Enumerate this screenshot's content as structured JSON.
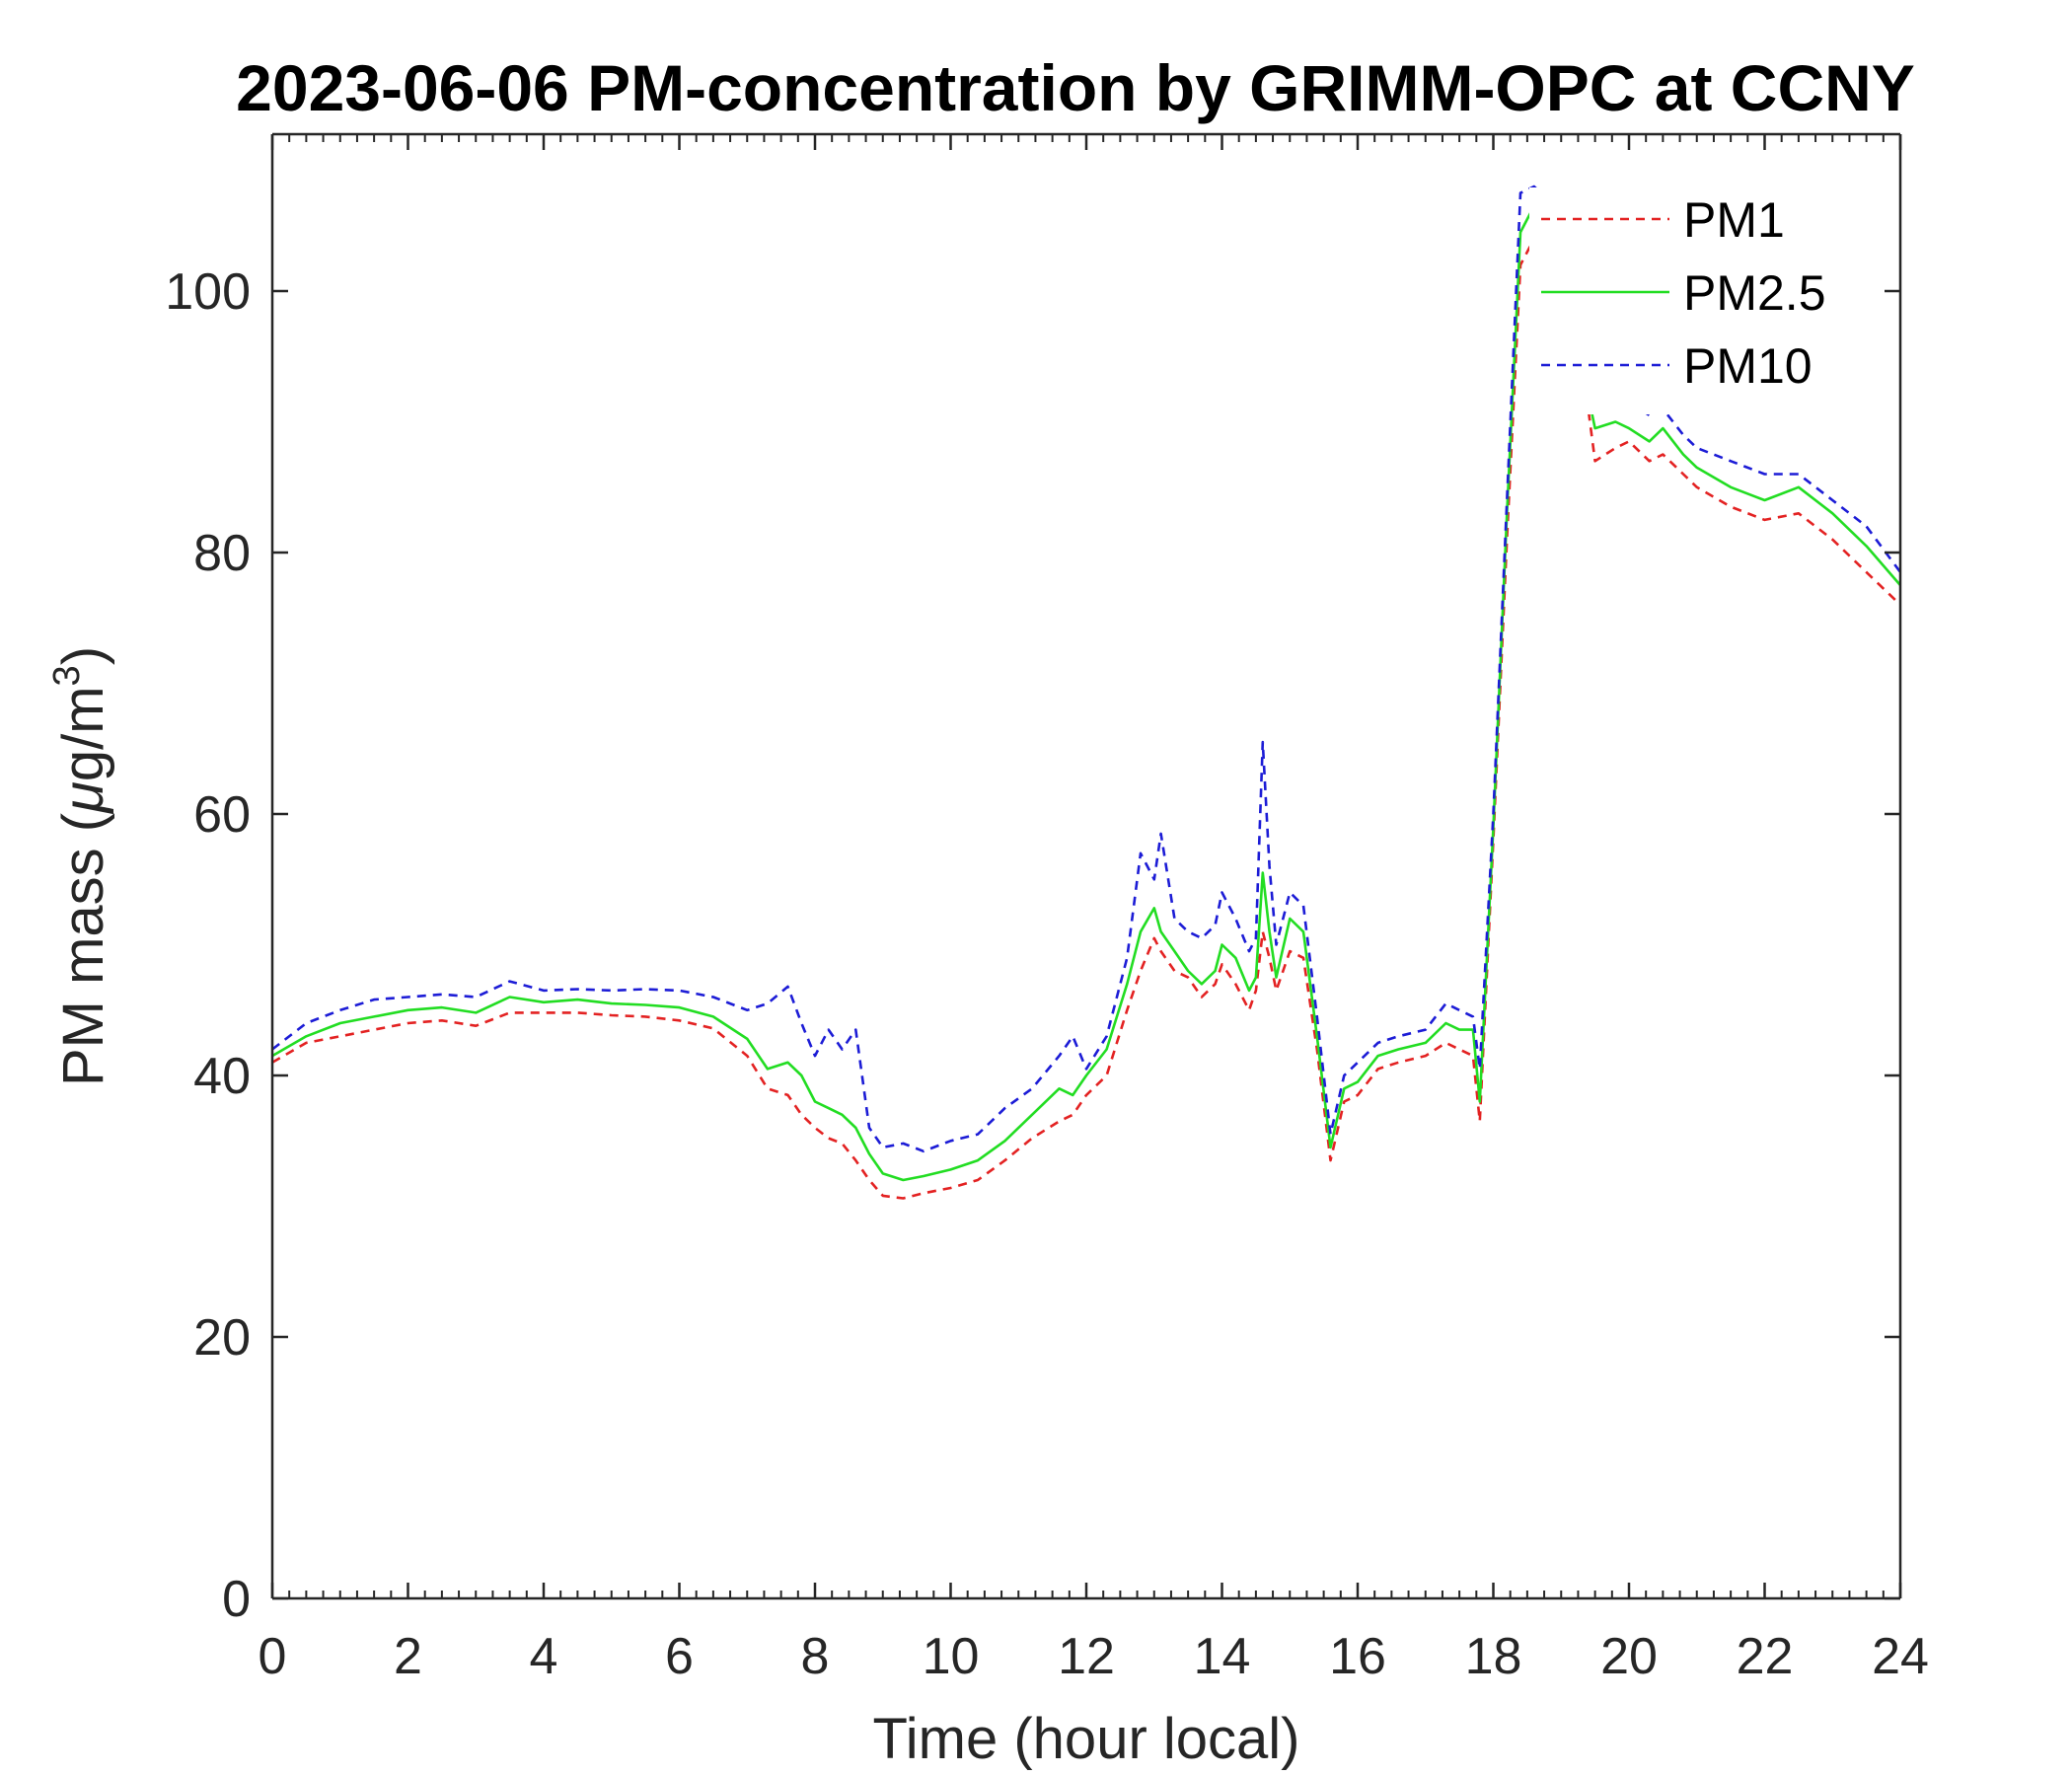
{
  "chart_data": {
    "type": "line",
    "title": "2023-06-06 PM-concentration by GRIMM-OPC at CCNY",
    "xlabel": "Time (hour local)",
    "ylabel_prefix": "PM mass (",
    "ylabel_mu": "μ",
    "ylabel_unit": "g/m",
    "ylabel_sup": "3",
    "ylabel_suffix": ")",
    "xlim": [
      0,
      24
    ],
    "ylim": [
      0,
      112
    ],
    "xticks": [
      0,
      2,
      4,
      6,
      8,
      10,
      12,
      14,
      16,
      18,
      20,
      22,
      24
    ],
    "yticks": [
      0,
      20,
      40,
      60,
      80,
      100
    ],
    "grid": false,
    "legend_position": "top-right",
    "x": [
      0,
      0.5,
      1,
      1.5,
      2,
      2.5,
      3,
      3.5,
      4,
      4.5,
      5,
      5.5,
      6,
      6.5,
      7,
      7.3,
      7.6,
      7.8,
      8,
      8.2,
      8.4,
      8.6,
      8.8,
      9,
      9.3,
      9.6,
      10,
      10.4,
      10.8,
      11.2,
      11.6,
      11.8,
      12,
      12.3,
      12.6,
      12.8,
      13,
      13.1,
      13.3,
      13.5,
      13.7,
      13.9,
      14,
      14.2,
      14.4,
      14.5,
      14.6,
      14.7,
      14.8,
      15,
      15.2,
      15.4,
      15.6,
      15.8,
      16,
      16.3,
      16.6,
      17,
      17.3,
      17.5,
      17.7,
      17.8,
      18,
      18.2,
      18.4,
      18.6,
      18.8,
      19,
      19.2,
      19.4,
      19.5,
      19.8,
      20,
      20.3,
      20.5,
      20.8,
      21,
      21.5,
      22,
      22.5,
      23,
      23.5,
      24
    ],
    "series": [
      {
        "name": "PM1",
        "color": "#e32222",
        "dash": "dashed",
        "values": [
          41,
          42.5,
          43,
          43.5,
          44,
          44.2,
          43.8,
          44.8,
          44.8,
          44.8,
          44.6,
          44.5,
          44.2,
          43.6,
          41.5,
          39,
          38.5,
          37,
          36,
          35.2,
          34.8,
          33.5,
          32,
          30.8,
          30.6,
          31,
          31.4,
          32,
          33.5,
          35.2,
          36.5,
          37,
          38.5,
          40,
          45,
          48,
          50.5,
          49.5,
          48,
          47.5,
          46,
          47,
          48.5,
          47,
          45,
          46.5,
          51,
          49,
          46.5,
          49.5,
          49,
          42,
          33.5,
          38,
          38.5,
          40.5,
          41,
          41.5,
          42.5,
          42,
          41.5,
          36.5,
          58,
          81,
          102,
          104,
          103,
          102,
          99,
          91,
          87,
          88,
          88.5,
          87,
          87.5,
          86,
          85,
          83.5,
          82.5,
          83,
          81,
          78.5,
          76
        ]
      },
      {
        "name": "PM2.5",
        "color": "#22dd22",
        "dash": "solid",
        "values": [
          41.5,
          43,
          44,
          44.5,
          45,
          45.2,
          44.8,
          46,
          45.6,
          45.8,
          45.5,
          45.4,
          45.2,
          44.5,
          42.8,
          40.5,
          41,
          40,
          38,
          37.5,
          37,
          36,
          34,
          32.5,
          32,
          32.3,
          32.8,
          33.5,
          35,
          37,
          39,
          38.5,
          40,
          42,
          47,
          51,
          52.8,
          51,
          49.5,
          48,
          47,
          48,
          50,
          49,
          46.5,
          47.5,
          55.5,
          51,
          47.5,
          52,
          51,
          43,
          34.5,
          39,
          39.5,
          41.5,
          42,
          42.5,
          44,
          43.5,
          43.5,
          38,
          59,
          83,
          104.5,
          106.5,
          105.5,
          104.5,
          100,
          92,
          89.5,
          90,
          89.5,
          88.5,
          89.5,
          87.5,
          86.5,
          85,
          84,
          85,
          83,
          80.5,
          77.5
        ]
      },
      {
        "name": "PM10",
        "color": "#1c1cd6",
        "dash": "dashed",
        "values": [
          42,
          44,
          45,
          45.8,
          46,
          46.2,
          46,
          47.2,
          46.5,
          46.6,
          46.5,
          46.6,
          46.5,
          46,
          45,
          45.5,
          46.8,
          44,
          41.5,
          43.5,
          42,
          43.5,
          36,
          34.5,
          34.8,
          34.2,
          35,
          35.5,
          37.5,
          39,
          41.5,
          43,
          40.5,
          43,
          49,
          57,
          55,
          58.5,
          52,
          51,
          50.5,
          51.5,
          54,
          52,
          49.5,
          50.5,
          65.5,
          56,
          50,
          54,
          53,
          44.5,
          35.5,
          40,
          41,
          42.5,
          43,
          43.5,
          45.5,
          45,
          44.5,
          40.5,
          60,
          84,
          107.5,
          108,
          107,
          106.5,
          102,
          93,
          91,
          92,
          91.5,
          90.5,
          91,
          89,
          88,
          87,
          86,
          86,
          84,
          82,
          78.5
        ]
      }
    ]
  }
}
